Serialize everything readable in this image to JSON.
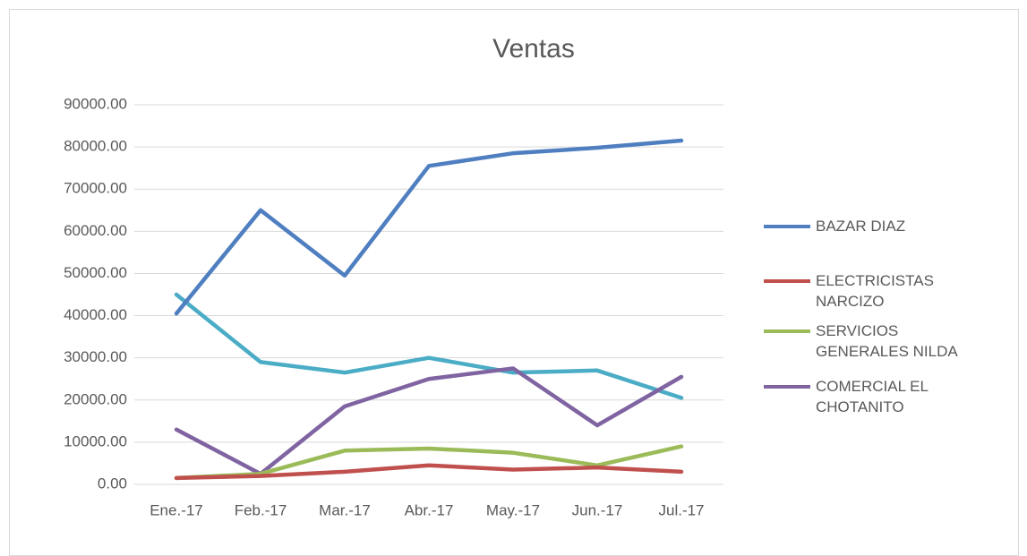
{
  "chart_data": {
    "type": "line",
    "title": "Ventas",
    "categories": [
      "Ene.-17",
      "Feb.-17",
      "Mar.-17",
      "Abr.-17",
      "May.-17",
      "Jun.-17",
      "Jul.-17"
    ],
    "series": [
      {
        "name": "BAZAR DIAZ",
        "color": "#4f7fc0",
        "values": [
          40500,
          65000,
          49500,
          75500,
          78500,
          79800,
          81500
        ]
      },
      {
        "name": "ELECTRICISTAS NARCIZO",
        "color": "#c0504d",
        "values": [
          1500,
          2000,
          3000,
          4500,
          3500,
          4000,
          3000
        ]
      },
      {
        "name": "SERVICIOS GENERALES NILDA",
        "color": "#9bbb59",
        "values": [
          1500,
          2500,
          8000,
          8500,
          7500,
          4500,
          9000
        ]
      },
      {
        "name": "COMERCIAL EL CHOTANITO",
        "color": "#8064a2",
        "values": [
          13000,
          2500,
          18500,
          25000,
          27500,
          14000,
          25500
        ]
      },
      {
        "color": "#4bacc6",
        "values": [
          45000,
          29000,
          26500,
          30000,
          26500,
          27000,
          20500
        ]
      }
    ],
    "ylim": [
      0,
      90000
    ],
    "yticks": [
      {
        "value": 0,
        "label": "0.00"
      },
      {
        "value": 10000,
        "label": "10000.00"
      },
      {
        "value": 20000,
        "label": "20000.00"
      },
      {
        "value": 30000,
        "label": "30000.00"
      },
      {
        "value": 40000,
        "label": "40000.00"
      },
      {
        "value": 50000,
        "label": "50000.00"
      },
      {
        "value": 60000,
        "label": "60000.00"
      },
      {
        "value": 70000,
        "label": "70000.00"
      },
      {
        "value": 80000,
        "label": "80000.00"
      },
      {
        "value": 90000,
        "label": "90000.00"
      }
    ],
    "grid": true,
    "legend": "right"
  }
}
